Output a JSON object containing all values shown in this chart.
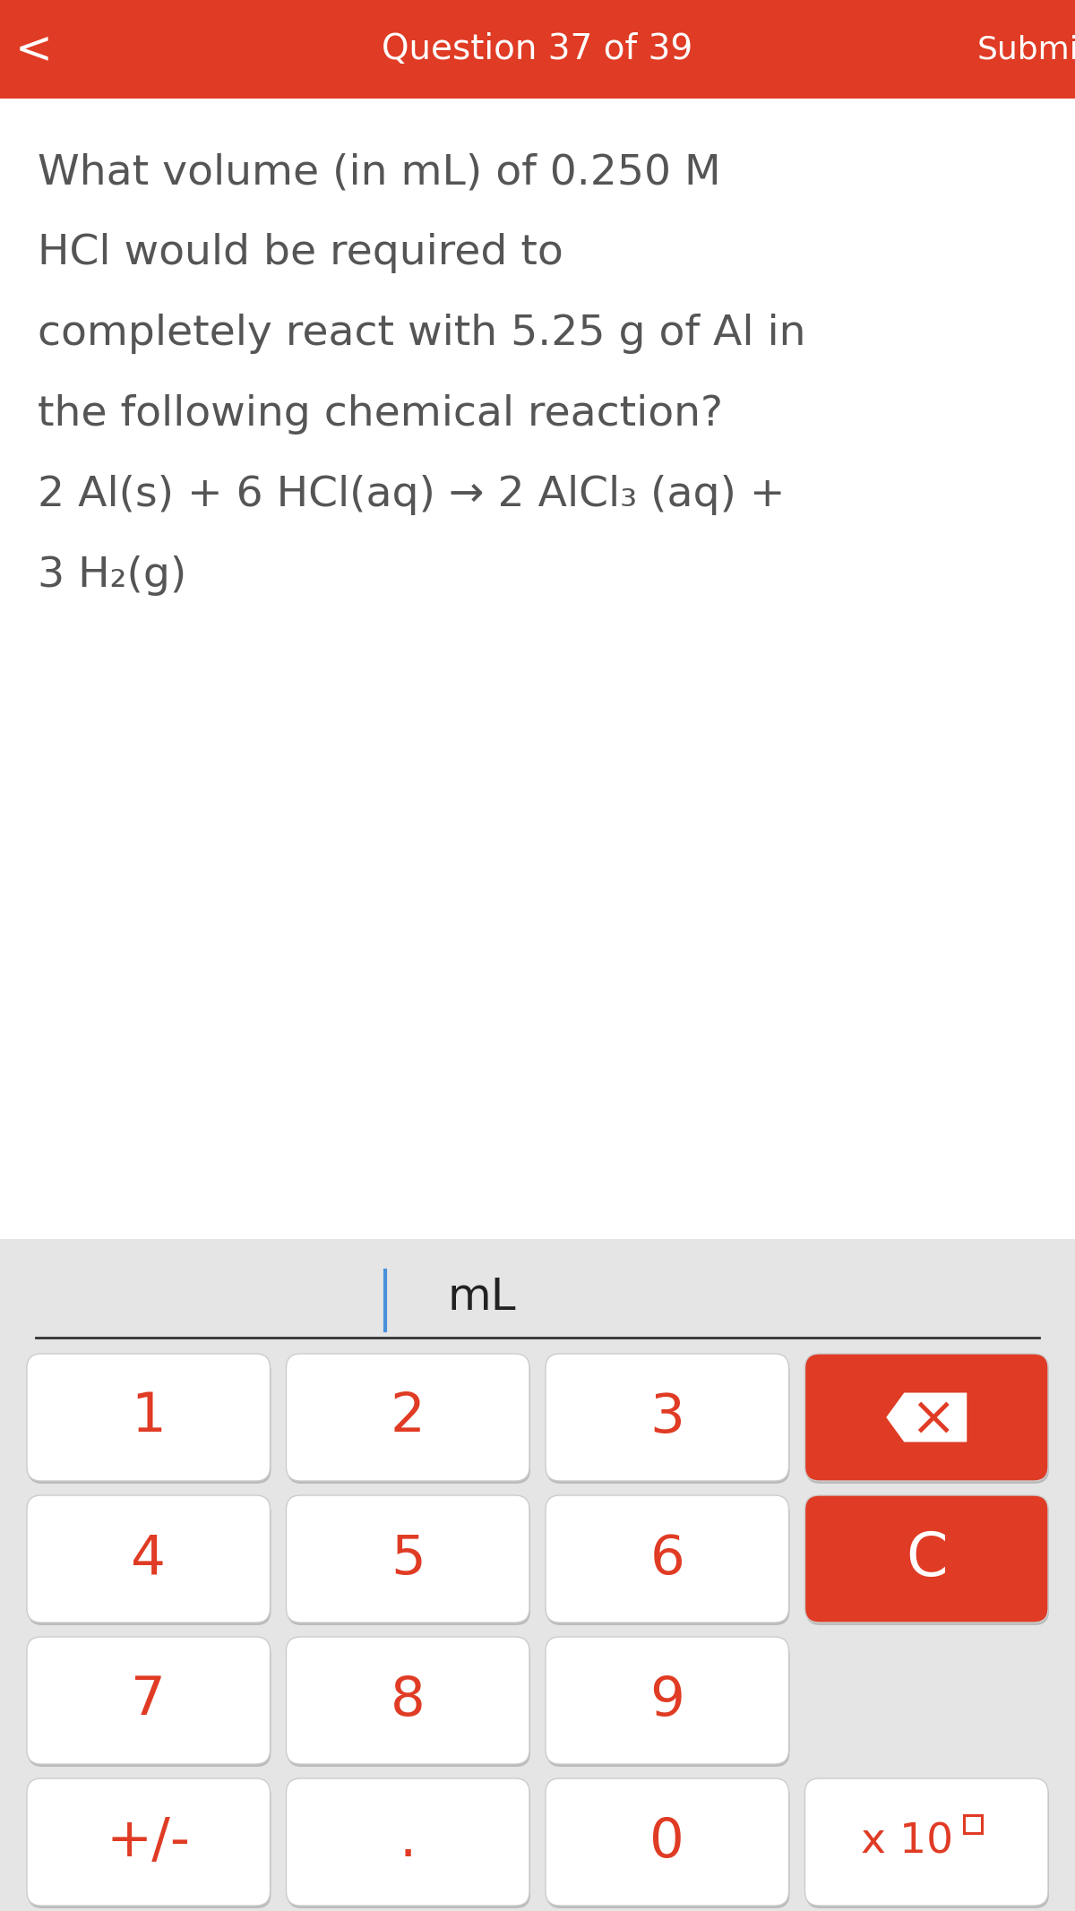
{
  "header_color": "#E03B24",
  "header_text": "Question 37 of 39",
  "submit_text": "Submit",
  "back_arrow": "‹",
  "question_lines": [
    "What volume (in mL) of 0.250 M",
    "HCl would be required to",
    "completely react with 5.25 g of Al in",
    "the following chemical reaction?",
    "2 Al(s) + 6 HCl(aq) → 2 AlCl₃ (aq) +",
    "3 H₂(g)"
  ],
  "question_color": "#555555",
  "bg_color": "#ffffff",
  "calc_bg_color": "#e5e5e5",
  "input_unit": "mL",
  "button_labels": [
    [
      "1",
      "2",
      "3"
    ],
    [
      "4",
      "5",
      "6"
    ],
    [
      "7",
      "8",
      "9"
    ],
    [
      "+/-",
      ".",
      "0"
    ]
  ],
  "red_color": "#E03B24",
  "white_color": "#ffffff",
  "button_bg": "#ffffff",
  "button_text_color": "#E03B24"
}
